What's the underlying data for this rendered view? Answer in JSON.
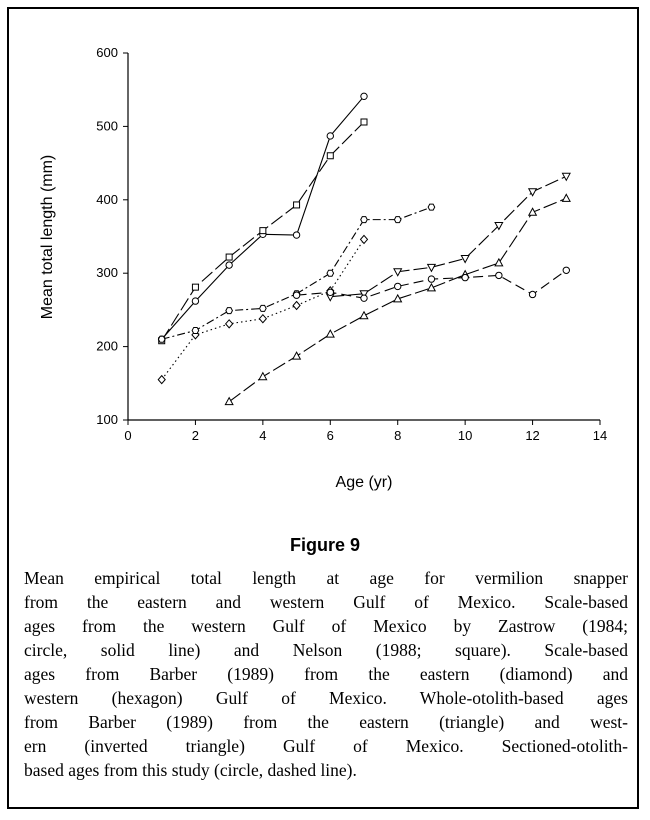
{
  "chart_data": {
    "type": "line",
    "xlabel": "Age (yr)",
    "ylabel": "Mean total length (mm)",
    "figure_label": "Figure 9",
    "caption": [
      "Mean empirical total length at age for vermilion snapper",
      "from the eastern and western Gulf of Mexico. Scale-based",
      "ages from the western Gulf of Mexico by Zastrow (1984;",
      "circle, solid line) and Nelson (1988; square). Scale-based",
      "ages from Barber (1989) from the eastern (diamond) and",
      "western (hexagon) Gulf of Mexico. Whole-otolith-based ages",
      "from Barber (1989) from the eastern (triangle) and west-",
      "ern (inverted triangle) Gulf of Mexico. Sectioned-otolith-",
      "based ages from this study (circle, dashed line)."
    ],
    "xlim": [
      0,
      14
    ],
    "xticks": [
      0,
      2,
      4,
      6,
      8,
      10,
      12,
      14
    ],
    "ylim": [
      100,
      600
    ],
    "yticks": [
      100,
      200,
      300,
      400,
      500,
      600
    ],
    "series": [
      {
        "color": "#000000",
        "marker": "circle",
        "dash": "solid",
        "x": [
          1,
          2,
          3,
          4,
          5,
          6,
          7
        ],
        "values": [
          210,
          262,
          311,
          353,
          352,
          487,
          541
        ]
      },
      {
        "color": "#000000",
        "marker": "square",
        "dash": "long-dash",
        "x": [
          1,
          2,
          3,
          4,
          5,
          6,
          7
        ],
        "values": [
          208,
          281,
          322,
          358,
          393,
          460,
          506
        ]
      },
      {
        "color": "#000000",
        "marker": "diamond",
        "dash": "dotted",
        "x": [
          1,
          2,
          3,
          4,
          5,
          6,
          7
        ],
        "values": [
          155,
          216,
          231,
          238,
          256,
          276,
          346
        ]
      },
      {
        "color": "#000000",
        "marker": "hexagon",
        "dash": "dash-dot",
        "x": [
          1,
          2,
          3,
          4,
          5,
          6,
          7,
          8,
          9
        ],
        "values": [
          210,
          222,
          249,
          252,
          272,
          300,
          373,
          373,
          390
        ]
      },
      {
        "color": "#000000",
        "marker": "triangle",
        "dash": "long-dash",
        "x": [
          3,
          4,
          5,
          6,
          7,
          8,
          9,
          10,
          11,
          12,
          13
        ],
        "values": [
          125,
          159,
          187,
          217,
          242,
          265,
          280,
          298,
          314,
          383,
          402
        ]
      },
      {
        "color": "#000000",
        "marker": "triangle-down",
        "dash": "long-dash",
        "x": [
          6,
          7,
          8,
          9,
          10,
          11,
          12,
          13
        ],
        "values": [
          268,
          272,
          302,
          308,
          320,
          365,
          411,
          432
        ]
      },
      {
        "color": "#000000",
        "marker": "circle",
        "dash": "dashed",
        "x": [
          5,
          6,
          7,
          8,
          9,
          10,
          11,
          12,
          13
        ],
        "values": [
          270,
          274,
          266,
          282,
          292,
          294,
          297,
          271,
          304
        ]
      }
    ]
  }
}
